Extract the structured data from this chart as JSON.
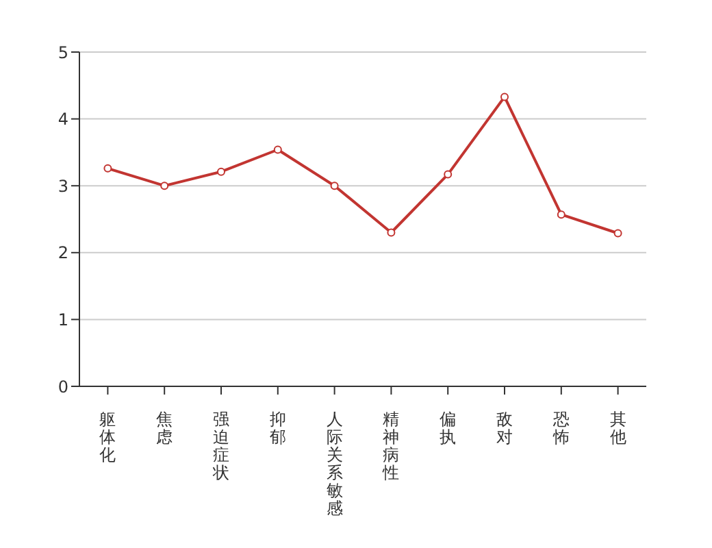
{
  "chart_data": {
    "type": "line",
    "categories": [
      "躯体化",
      "焦虑",
      "强迫症状",
      "抑郁",
      "人际关系敏感",
      "精神病性",
      "偏执",
      "敌对",
      "恐怖",
      "其他"
    ],
    "series": [
      {
        "color": "#c23531",
        "values": [
          3.26,
          3.0,
          3.21,
          3.54,
          3.0,
          2.3,
          3.17,
          4.33,
          2.57,
          2.29
        ]
      }
    ],
    "ylim": [
      0,
      5
    ],
    "yticks": [
      0,
      1,
      2,
      3,
      4,
      5
    ],
    "grid": "y",
    "marker": "circle"
  }
}
